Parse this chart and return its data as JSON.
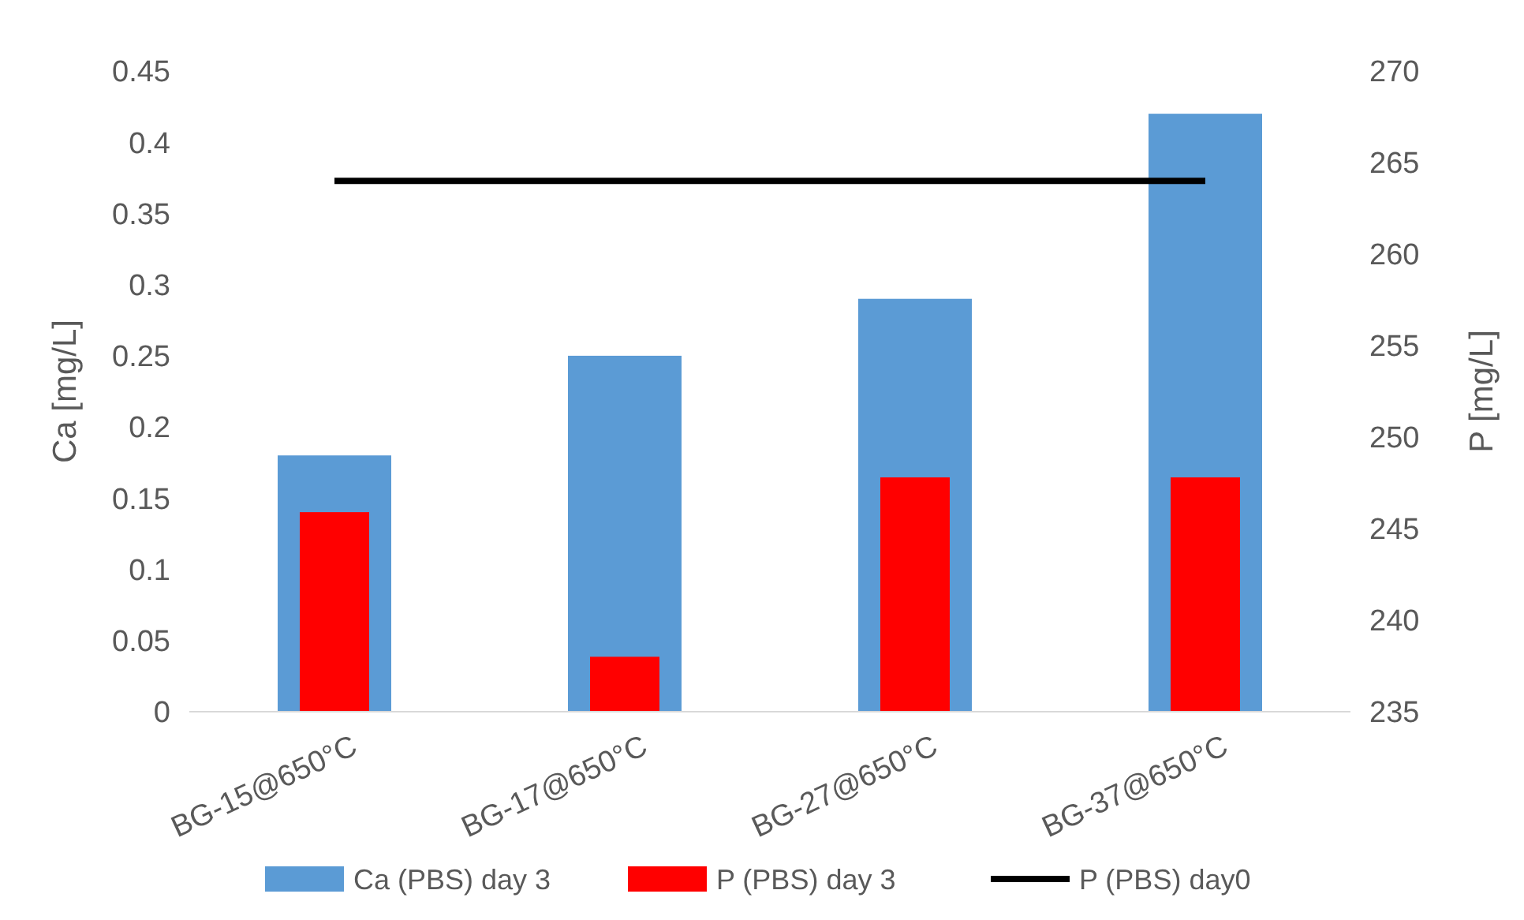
{
  "chart_data": {
    "type": "bar",
    "categories": [
      "BG-15@650°C",
      "BG-17@650°C",
      "BG-27@650°C",
      "BG-37@650°C"
    ],
    "ylabel": "Ca [mg/L]",
    "y2label": "P [mg/L]",
    "ylim": [
      0,
      0.45
    ],
    "yticks": [
      0,
      0.05,
      0.1,
      0.15,
      0.2,
      0.25,
      0.3,
      0.35,
      0.4,
      0.45
    ],
    "y2lim": [
      235,
      270
    ],
    "y2ticks": [
      235,
      240,
      245,
      250,
      255,
      260,
      265,
      270
    ],
    "series": [
      {
        "name": "Ca (PBS) day 3",
        "color": "#5b9bd5",
        "values": [
          0.18,
          0.25,
          0.29,
          0.42
        ]
      },
      {
        "name": "P (PBS) day 3",
        "color": "#ff0000",
        "axis": "y2",
        "values": [
          245.9,
          238,
          247.8,
          247.8
        ]
      },
      {
        "name": "P (PBS) day0",
        "color": "#000000",
        "axis": "y2",
        "type": "line",
        "values": [
          264,
          264,
          264,
          264
        ]
      }
    ],
    "grid": false,
    "legend": "bottom",
    "marker": "none",
    "line_style": "solid"
  }
}
